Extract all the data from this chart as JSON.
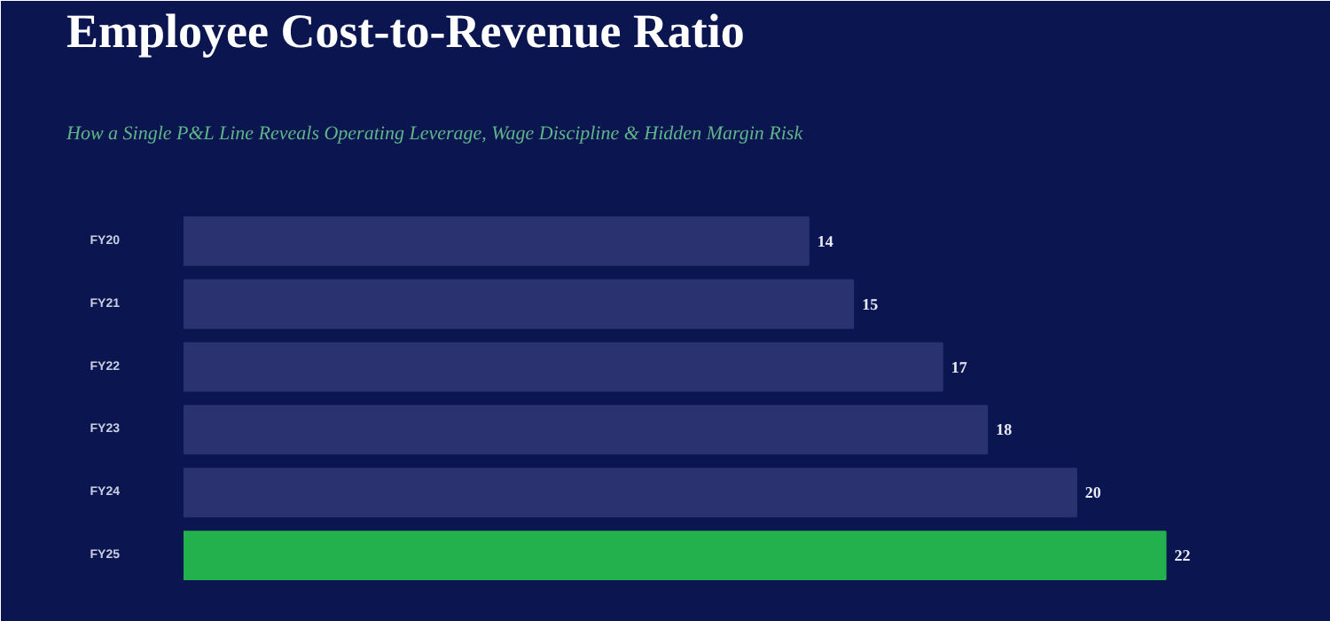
{
  "chart_data": {
    "type": "bar",
    "orientation": "horizontal",
    "title": "Employee Cost-to-Revenue Ratio",
    "subtitle": "How a Single P&L Line Reveals Operating Leverage, Wage Discipline & Hidden Margin Risk",
    "categories": [
      "FY20",
      "FY21",
      "FY22",
      "FY23",
      "FY24",
      "FY25"
    ],
    "values": [
      14,
      15,
      17,
      18,
      20,
      22
    ],
    "colors": [
      "#2b3270",
      "#2b3270",
      "#2b3270",
      "#2b3270",
      "#2b3270",
      "#22b14c"
    ],
    "data_labels": true,
    "tick_labels": "y"
  }
}
